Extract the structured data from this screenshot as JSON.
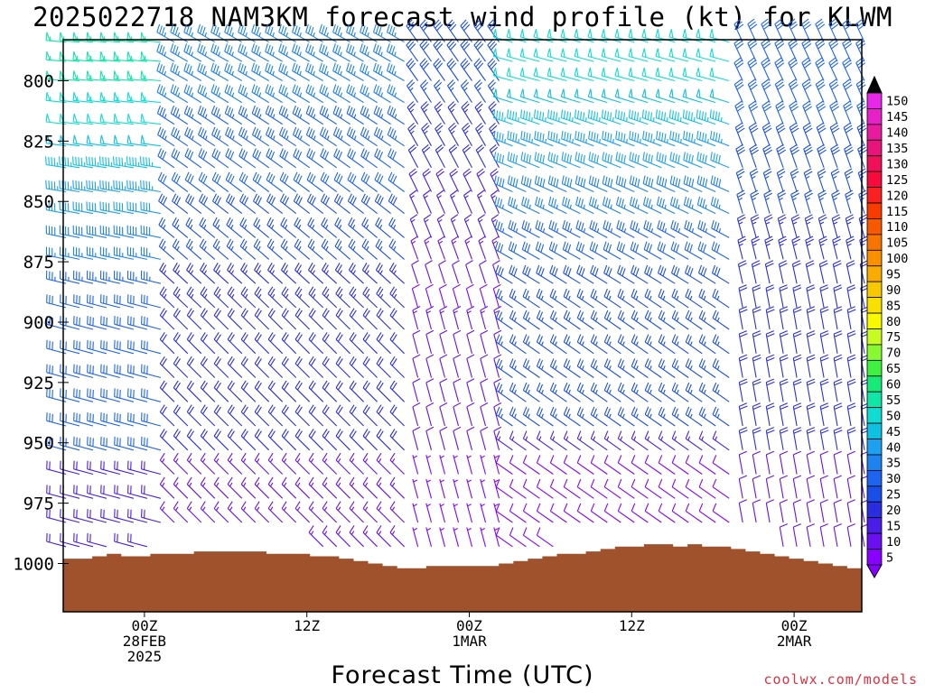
{
  "title": "2025022718 NAM3KM forecast wind profile (kt) for KLWM",
  "xlabel": "Forecast Time (UTC)",
  "credit": "coolwx.com/models",
  "chart_data": {
    "type": "wind_barb_profile",
    "y_axis": {
      "label": "",
      "ticks": [
        800,
        825,
        850,
        875,
        900,
        925,
        950,
        975,
        1000
      ],
      "range_hPa": [
        1020,
        783
      ],
      "inverted": true
    },
    "x_axis": {
      "ticks": [
        {
          "forecast_hour": 6,
          "labels": [
            "00Z",
            "28FEB",
            "2025"
          ]
        },
        {
          "forecast_hour": 18,
          "labels": [
            "12Z"
          ]
        },
        {
          "forecast_hour": 30,
          "labels": [
            "00Z",
            "1MAR"
          ]
        },
        {
          "forecast_hour": 42,
          "labels": [
            "12Z"
          ]
        },
        {
          "forecast_hour": 54,
          "labels": [
            "00Z",
            "2MAR"
          ]
        }
      ],
      "range_forecast_hours": [
        0,
        59
      ]
    },
    "colorbar": {
      "levels": [
        5,
        10,
        15,
        20,
        25,
        30,
        35,
        40,
        45,
        50,
        55,
        60,
        65,
        70,
        75,
        80,
        85,
        90,
        95,
        100,
        105,
        110,
        115,
        120,
        125,
        130,
        135,
        140,
        145,
        150
      ],
      "colors": [
        "#8800ff",
        "#6a10f0",
        "#4a1ee6",
        "#2a2ee0",
        "#1a4ee8",
        "#1e64f0",
        "#1e82f0",
        "#1ea0f0",
        "#10c0e0",
        "#10dcd2",
        "#10e6a8",
        "#18ea78",
        "#40f040",
        "#88f830",
        "#c8fc20",
        "#f8f800",
        "#f8e000",
        "#f8c800",
        "#f8ac00",
        "#f89000",
        "#f87400",
        "#f85800",
        "#f83c00",
        "#f82020",
        "#f80a3c",
        "#f0105a",
        "#e8147c",
        "#e81aa0",
        "#e820c8",
        "#e828e8"
      ],
      "extend": "both"
    },
    "terrain": {
      "color": "#a0522d",
      "surface_pressure_hPa": [
        998,
        998,
        997,
        996,
        997,
        997,
        996,
        996,
        996,
        995,
        995,
        995,
        995,
        995,
        996,
        996,
        996,
        997,
        997,
        998,
        999,
        1000,
        1001,
        1002,
        1002,
        1001,
        1001,
        1001,
        1001,
        1001,
        1000,
        999,
        998,
        997,
        996,
        996,
        995,
        994,
        993,
        993,
        992,
        992,
        993,
        992,
        993,
        993,
        994,
        995,
        996,
        997,
        998,
        999,
        1000,
        1001,
        1002
      ]
    },
    "pressure_levels_hPa": [
      784,
      792,
      800,
      809,
      818,
      827,
      836,
      846,
      855,
      865,
      874,
      884,
      894,
      903,
      913,
      923,
      933,
      943,
      953,
      963,
      973,
      983,
      993
    ],
    "forecast_hours": [
      0,
      1,
      2,
      3,
      4,
      5,
      6,
      7,
      8,
      9,
      10,
      11,
      12,
      13,
      14,
      15,
      16,
      17,
      18,
      19,
      20,
      21,
      22,
      23,
      24,
      25,
      26,
      27,
      28,
      29,
      30,
      31,
      32,
      33,
      34,
      35,
      36,
      37,
      38,
      39,
      40,
      41,
      42,
      43,
      44,
      45,
      46,
      47,
      48,
      49,
      50,
      51,
      52,
      53,
      54,
      55,
      56,
      57,
      58,
      59
    ],
    "wind_summary": [
      {
        "period_hours": [
          0,
          8
        ],
        "levels": "800-900 hPa",
        "direction": "W-WNW",
        "speed_kt": [
          40,
          60
        ]
      },
      {
        "period_hours": [
          8,
          26
        ],
        "levels": "800-975 hPa",
        "direction": "NW",
        "speed_kt": [
          25,
          40
        ]
      },
      {
        "period_hours": [
          26,
          33
        ],
        "levels": "850-1000 hPa",
        "direction": "NNW",
        "speed_kt": [
          5,
          20
        ]
      },
      {
        "period_hours": [
          33,
          50
        ],
        "levels": "800-925 hPa",
        "direction": "WNW-W",
        "speed_kt": [
          35,
          55
        ]
      },
      {
        "period_hours": [
          50,
          59
        ],
        "levels": "800-975 hPa",
        "direction": "NNW-N",
        "speed_kt": [
          20,
          35
        ]
      }
    ]
  }
}
